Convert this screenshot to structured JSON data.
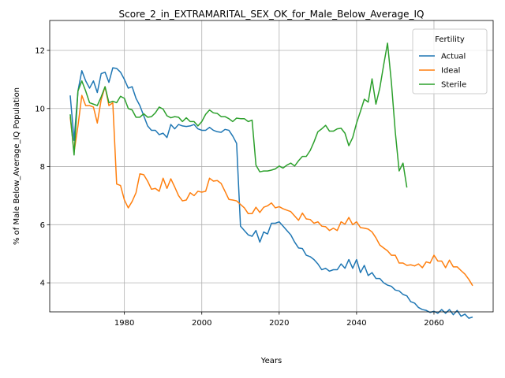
{
  "chart_data": {
    "type": "line",
    "title": "Score_2_in_EXTRAMARITAL_SEX_OK_for_Male_Below_Average_IQ",
    "xlabel": "Years",
    "ylabel": "% of Male Below_Average_IQ Population",
    "legend_title": "Fertility",
    "legend": "upper right",
    "grid": true,
    "xlim": [
      1960.7,
      2075.3
    ],
    "ylim": [
      3.0,
      13.03
    ],
    "xticks": [
      1980,
      2000,
      2020,
      2040,
      2060
    ],
    "yticks": [
      4,
      6,
      8,
      10,
      12
    ],
    "x": [
      1966,
      1967,
      1968,
      1969,
      1970,
      1971,
      1972,
      1973,
      1974,
      1975,
      1976,
      1977,
      1978,
      1979,
      1980,
      1981,
      1982,
      1983,
      1984,
      1985,
      1986,
      1987,
      1988,
      1989,
      1990,
      1991,
      1992,
      1993,
      1994,
      1995,
      1996,
      1997,
      1998,
      1999,
      2000,
      2001,
      2002,
      2003,
      2004,
      2005,
      2006,
      2007,
      2008,
      2009,
      2010,
      2011,
      2012,
      2013,
      2014,
      2015,
      2016,
      2017,
      2018,
      2019,
      2020,
      2021,
      2022,
      2023,
      2024,
      2025,
      2026,
      2027,
      2028,
      2029,
      2030,
      2031,
      2032,
      2033,
      2034,
      2035,
      2036,
      2037,
      2038,
      2039,
      2040,
      2041,
      2042,
      2043,
      2044,
      2045,
      2046,
      2047,
      2048,
      2049,
      2050,
      2051,
      2052,
      2053,
      2054,
      2055,
      2056,
      2057,
      2058,
      2059,
      2060,
      2061,
      2062,
      2063,
      2064,
      2065,
      2066,
      2067,
      2068,
      2069,
      2070
    ],
    "series": [
      {
        "name": "Actual",
        "color": "#1f77b4",
        "values": [
          10.45,
          8.9,
          10.6,
          11.3,
          10.95,
          10.7,
          10.95,
          10.55,
          11.2,
          11.25,
          10.9,
          11.4,
          11.38,
          11.25,
          11.0,
          10.7,
          10.75,
          10.35,
          10.1,
          9.75,
          9.4,
          9.25,
          9.25,
          9.1,
          9.15,
          9.0,
          9.45,
          9.3,
          9.45,
          9.4,
          9.38,
          9.4,
          9.45,
          9.3,
          9.25,
          9.25,
          9.35,
          9.25,
          9.2,
          9.18,
          9.28,
          9.25,
          9.05,
          8.8,
          5.95,
          5.8,
          5.65,
          5.6,
          5.8,
          5.4,
          5.75,
          5.68,
          6.05,
          6.05,
          6.1,
          5.95,
          5.8,
          5.65,
          5.4,
          5.2,
          5.18,
          4.95,
          4.9,
          4.8,
          4.65,
          4.45,
          4.5,
          4.4,
          4.45,
          4.45,
          4.65,
          4.5,
          4.8,
          4.5,
          4.8,
          4.35,
          4.6,
          4.25,
          4.35,
          4.15,
          4.15,
          4.0,
          3.92,
          3.88,
          3.75,
          3.72,
          3.6,
          3.55,
          3.35,
          3.3,
          3.15,
          3.08,
          3.05,
          2.98,
          3.02,
          2.95,
          3.08,
          2.95,
          3.08,
          2.9,
          3.05,
          2.85,
          2.92,
          2.78,
          2.82
        ]
      },
      {
        "name": "Ideal",
        "color": "#ff7f0e",
        "values": [
          9.7,
          8.5,
          9.4,
          10.45,
          10.1,
          10.1,
          10.05,
          9.5,
          10.3,
          10.75,
          10.1,
          10.2,
          7.4,
          7.35,
          6.85,
          6.58,
          6.8,
          7.1,
          7.75,
          7.72,
          7.5,
          7.22,
          7.25,
          7.15,
          7.6,
          7.25,
          7.58,
          7.3,
          7.0,
          6.82,
          6.85,
          7.1,
          7.0,
          7.15,
          7.12,
          7.15,
          7.6,
          7.5,
          7.52,
          7.42,
          7.15,
          6.87,
          6.85,
          6.82,
          6.7,
          6.58,
          6.38,
          6.38,
          6.6,
          6.42,
          6.6,
          6.65,
          6.75,
          6.58,
          6.62,
          6.55,
          6.5,
          6.45,
          6.3,
          6.15,
          6.4,
          6.2,
          6.18,
          6.05,
          6.1,
          5.95,
          5.93,
          5.8,
          5.88,
          5.8,
          6.1,
          6.02,
          6.25,
          6.0,
          6.1,
          5.9,
          5.88,
          5.85,
          5.75,
          5.55,
          5.3,
          5.2,
          5.1,
          4.95,
          4.95,
          4.68,
          4.68,
          4.6,
          4.62,
          4.58,
          4.65,
          4.52,
          4.72,
          4.68,
          4.95,
          4.75,
          4.75,
          4.52,
          4.78,
          4.55,
          4.55,
          4.42,
          4.3,
          4.12,
          3.9
        ]
      },
      {
        "name": "Sterile",
        "color": "#2ca02c",
        "values": [
          9.8,
          8.4,
          10.6,
          10.95,
          10.6,
          10.2,
          10.15,
          10.1,
          10.4,
          10.75,
          10.2,
          10.25,
          10.2,
          10.42,
          10.35,
          10.0,
          9.95,
          9.7,
          9.7,
          9.82,
          9.7,
          9.72,
          9.85,
          10.05,
          9.98,
          9.75,
          9.68,
          9.72,
          9.7,
          9.55,
          9.68,
          9.55,
          9.55,
          9.4,
          9.55,
          9.8,
          9.95,
          9.85,
          9.83,
          9.72,
          9.72,
          9.65,
          9.55,
          9.67,
          9.65,
          9.65,
          9.55,
          9.6,
          8.05,
          7.82,
          7.85,
          7.85,
          7.88,
          7.92,
          8.02,
          7.95,
          8.05,
          8.12,
          8.02,
          8.2,
          8.35,
          8.35,
          8.55,
          8.85,
          9.2,
          9.3,
          9.42,
          9.22,
          9.22,
          9.3,
          9.32,
          9.15,
          8.72,
          9.0,
          9.5,
          9.9,
          10.32,
          10.22,
          11.02,
          10.15,
          10.7,
          11.5,
          12.25,
          10.9,
          9.2,
          7.85,
          8.12,
          7.28,
          null,
          null,
          null,
          null,
          null,
          null,
          null,
          null,
          null,
          null,
          null,
          null,
          null,
          null,
          null,
          null,
          null
        ]
      }
    ]
  }
}
